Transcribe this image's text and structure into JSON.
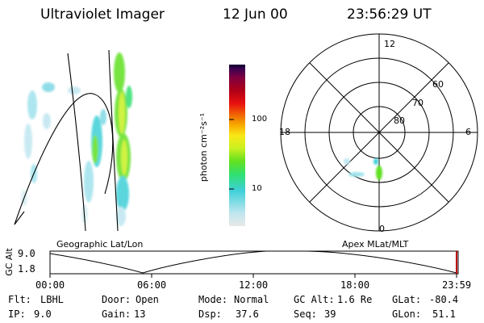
{
  "header": {
    "instrument": "Ultraviolet Imager",
    "date": "12 Jun 00",
    "time": "23:56:29 UT"
  },
  "colorbar": {
    "label": "photon cm⁻²s⁻¹",
    "ticks": [
      "100",
      "10"
    ],
    "stops": [
      "#e8e8e8",
      "#bfe6f0",
      "#3fd0d8",
      "#30e070",
      "#60e020",
      "#c8f020",
      "#f8e818",
      "#f8b000",
      "#f07000",
      "#e81010",
      "#b00018",
      "#800040",
      "#400050",
      "#100030"
    ]
  },
  "polar": {
    "mlt_labels": {
      "top": "12",
      "bottom": "0",
      "left": "18",
      "right": "6"
    },
    "lat_labels": [
      "60",
      "70",
      "80"
    ]
  },
  "timeline": {
    "axis_title": "GC Alt",
    "y_ticks": [
      "9.0",
      "1.8"
    ],
    "left_title": "Geographic Lat/Lon",
    "right_title": "Apex MLat/MLT",
    "x_ticks": [
      "00:00",
      "06:00",
      "12:00",
      "18:00",
      "23:59"
    ]
  },
  "status": {
    "flt_label": "Flt:",
    "flt_value": "LBHL",
    "ip_label": "IP:",
    "ip_value": "9.0",
    "door_label": "Door:",
    "door_value": "Open",
    "gain_label": "Gain:",
    "gain_value": "13",
    "mode_label": "Mode:",
    "mode_value": "Normal",
    "dsp_label": "Dsp:",
    "dsp_value": "37.6",
    "gcalt_label": "GC Alt:",
    "gcalt_value": "1.6 Re",
    "seq_label": "Seq:",
    "seq_value": "39",
    "glat_label": "GLat:",
    "glat_value": "-80.4",
    "glon_label": "GLon:",
    "glon_value": "51.1"
  }
}
